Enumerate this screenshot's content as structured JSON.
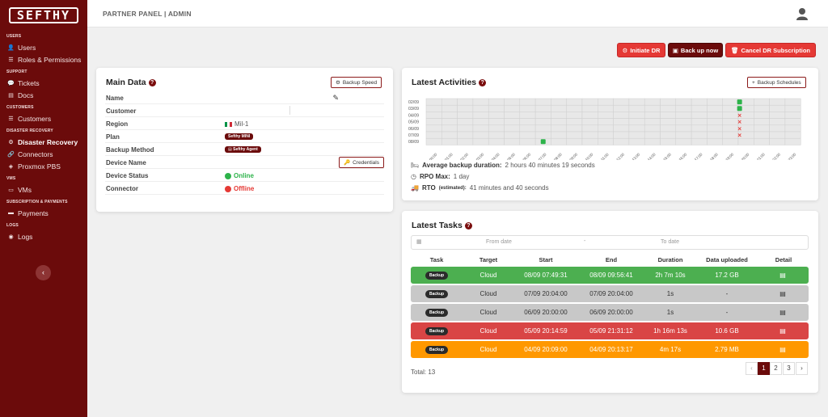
{
  "app": {
    "logo": "SEFTHY",
    "breadcrumb": "PARTNER PANEL | ADMIN"
  },
  "sidebar": {
    "sections": [
      {
        "head": "USERS",
        "items": [
          {
            "label": "Users",
            "icon": "user-icon"
          },
          {
            "label": "Roles & Permissions",
            "icon": "list-icon"
          }
        ]
      },
      {
        "head": "SUPPORT",
        "items": [
          {
            "label": "Tickets",
            "icon": "chat-icon"
          },
          {
            "label": "Docs",
            "icon": "doc-icon"
          }
        ]
      },
      {
        "head": "CUSTOMERS",
        "items": [
          {
            "label": "Customers",
            "icon": "list-icon"
          }
        ]
      },
      {
        "head": "DISASTER RECOVERY",
        "items": [
          {
            "label": "Disaster Recovery",
            "icon": "gear-icon",
            "active": true
          },
          {
            "label": "Connectors",
            "icon": "link-icon"
          },
          {
            "label": "Proxmox PBS",
            "icon": "cube-icon"
          }
        ]
      },
      {
        "head": "VMS",
        "items": [
          {
            "label": "VMs",
            "icon": "monitor-icon"
          }
        ]
      },
      {
        "head": "SUBSCRIPTION & PAYMENTS",
        "items": [
          {
            "label": "Payments",
            "icon": "card-icon"
          }
        ]
      },
      {
        "head": "LOGS",
        "items": [
          {
            "label": "Logs",
            "icon": "eye-icon"
          }
        ]
      }
    ]
  },
  "actions": {
    "initiate": "Initiate DR",
    "backup": "Back up now",
    "cancel": "Cancel DR Subscription"
  },
  "main_data": {
    "title": "Main Data",
    "speed_button": "Backup Speed",
    "credentials_button": "Credentials",
    "rows": {
      "name": {
        "label": "Name",
        "value": ""
      },
      "customer": {
        "label": "Customer",
        "value": ""
      },
      "region": {
        "label": "Region",
        "value": "Mil-1"
      },
      "plan": {
        "label": "Plan",
        "value": "Sefthy MINI"
      },
      "method": {
        "label": "Backup Method",
        "value": "Sefthy Agent"
      },
      "device": {
        "label": "Device Name",
        "value": ""
      },
      "status": {
        "label": "Device Status",
        "value": "Online",
        "color": "#2db34a"
      },
      "connector": {
        "label": "Connector",
        "value": "Offline",
        "color": "#e53935"
      }
    }
  },
  "activities": {
    "title": "Latest Activities",
    "schedules_button": "Backup Schedules",
    "days": [
      "02/09",
      "03/09",
      "04/09",
      "05/09",
      "06/09",
      "07/09",
      "08/09"
    ],
    "hours": [
      "00:00",
      "01:00",
      "02:00",
      "03:00",
      "04:00",
      "05:00",
      "06:00",
      "07:00",
      "08:00",
      "09:00",
      "10:00",
      "11:00",
      "12:00",
      "13:00",
      "14:00",
      "15:00",
      "16:00",
      "17:00",
      "18:00",
      "19:00",
      "20:00",
      "21:00",
      "22:00",
      "23:00"
    ],
    "marks": [
      {
        "day": "02/09",
        "hour": 20,
        "status": "ok"
      },
      {
        "day": "03/09",
        "hour": 20,
        "status": "ok"
      },
      {
        "day": "04/09",
        "hour": 20,
        "status": "fail"
      },
      {
        "day": "05/09",
        "hour": 20,
        "status": "fail"
      },
      {
        "day": "06/09",
        "hour": 20,
        "status": "fail"
      },
      {
        "day": "07/09",
        "hour": 20,
        "status": "fail"
      },
      {
        "day": "08/09",
        "hour": 7,
        "status": "ok"
      }
    ],
    "stats": {
      "avg_label": "Average backup duration:",
      "avg_value": "2 hours 40 minutes 19 seconds",
      "rpo_label": "RPO Max:",
      "rpo_value": "1 day",
      "rto_label": "RTO",
      "rto_note": "(estimated):",
      "rto_value": "41 minutes and 40 seconds"
    }
  },
  "tasks": {
    "title": "Latest Tasks",
    "from_placeholder": "From date",
    "to_placeholder": "To date",
    "dash": "-",
    "headers": [
      "Task",
      "Target",
      "Start",
      "End",
      "Duration",
      "Data uploaded",
      "Detail"
    ],
    "rows": [
      {
        "task": "Backup",
        "target": "Cloud",
        "start": "08/09 07:49:31",
        "end": "08/09 09:56:41",
        "duration": "2h 7m 10s",
        "data": "17.2 GB",
        "color": "#4caf50",
        "text": "#fff"
      },
      {
        "task": "Backup",
        "target": "Cloud",
        "start": "07/09 20:04:00",
        "end": "07/09 20:04:00",
        "duration": "1s",
        "data": "-",
        "color": "#c8c8c8",
        "text": "#333"
      },
      {
        "task": "Backup",
        "target": "Cloud",
        "start": "06/09 20:00:00",
        "end": "06/09 20:00:00",
        "duration": "1s",
        "data": "-",
        "color": "#c8c8c8",
        "text": "#333"
      },
      {
        "task": "Backup",
        "target": "Cloud",
        "start": "05/09 20:14:59",
        "end": "05/09 21:31:12",
        "duration": "1h 16m 13s",
        "data": "10.6 GB",
        "color": "#d94545",
        "text": "#fff"
      },
      {
        "task": "Backup",
        "target": "Cloud",
        "start": "04/09 20:09:00",
        "end": "04/09 20:13:17",
        "duration": "4m 17s",
        "data": "2.79 MB",
        "color": "#ff9800",
        "text": "#fff"
      }
    ],
    "total": "Total: 13",
    "pages": [
      "1",
      "2",
      "3"
    ],
    "prev": "‹",
    "next": "›"
  }
}
